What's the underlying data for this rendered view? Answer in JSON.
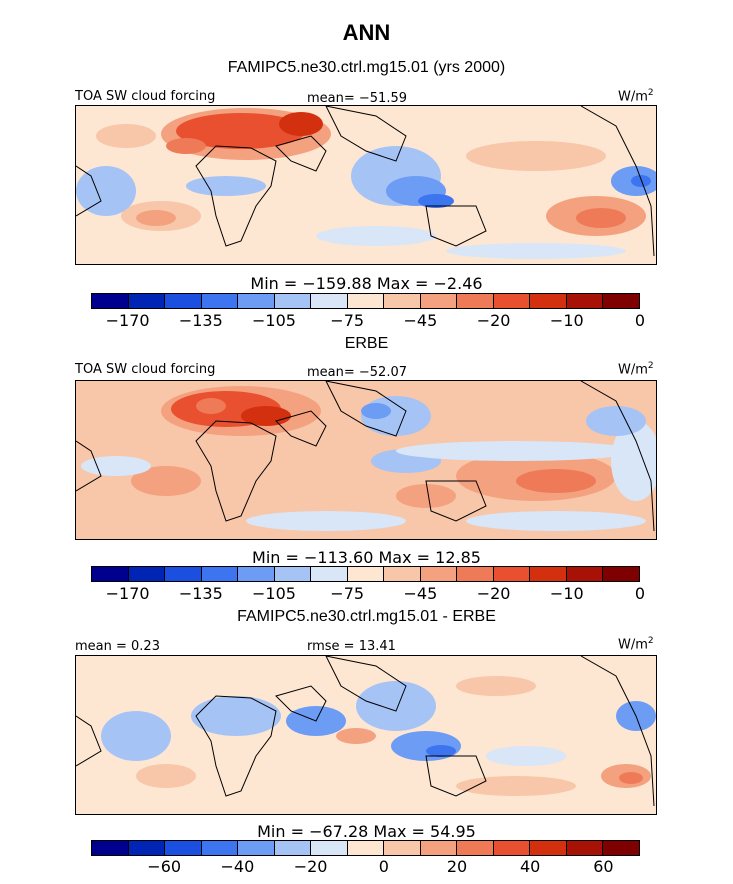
{
  "figure_title": "ANN",
  "panels": [
    {
      "title": "FAMIPC5.ne30.ctrl.mg15.01 (yrs 2000)",
      "left_label": "TOA SW cloud forcing",
      "mean_label": "mean= −51.59",
      "units": "W/m",
      "units_sup": "2",
      "stats_label": "Min = −159.88 Max =  −2.46",
      "colors": [
        "#00008f",
        "#0024b4",
        "#1a4fe0",
        "#3d74f0",
        "#6d9cf5",
        "#a6c3f5",
        "#d8e6f7",
        "#fde6d2",
        "#f8c6a8",
        "#f4a17f",
        "#ef7a58",
        "#e8502f",
        "#d2300e",
        "#a81206",
        "#7f0000"
      ],
      "ticks": [
        "−170",
        "−135",
        "−105",
        "−75",
        "−45",
        "−20",
        "−10",
        "0"
      ]
    },
    {
      "title": "ERBE",
      "left_label": "TOA SW cloud forcing",
      "mean_label": "mean= −52.07",
      "units": "W/m",
      "units_sup": "2",
      "stats_label": "Min = −113.60 Max =  12.85",
      "colors": [
        "#00008f",
        "#0024b4",
        "#1a4fe0",
        "#3d74f0",
        "#6d9cf5",
        "#a6c3f5",
        "#d8e6f7",
        "#fde6d2",
        "#f8c6a8",
        "#f4a17f",
        "#ef7a58",
        "#e8502f",
        "#d2300e",
        "#a81206",
        "#7f0000"
      ],
      "ticks": [
        "−170",
        "−135",
        "−105",
        "−75",
        "−45",
        "−20",
        "−10",
        "0"
      ]
    },
    {
      "title": "FAMIPC5.ne30.ctrl.mg15.01 - ERBE",
      "left_label": "mean =   0.23",
      "mean_label": "rmse =  13.41",
      "units": "W/m",
      "units_sup": "2",
      "stats_label": "Min = −67.28 Max =  54.95",
      "colors": [
        "#00008f",
        "#0024b4",
        "#1a4fe0",
        "#3d74f0",
        "#6d9cf5",
        "#a6c3f5",
        "#d8e6f7",
        "#fde6d2",
        "#f8c6a8",
        "#f4a17f",
        "#ef7a58",
        "#e8502f",
        "#d2300e",
        "#a81206",
        "#7f0000"
      ],
      "ticks": [
        "−60",
        "−40",
        "−20",
        "0",
        "20",
        "40",
        "60"
      ]
    }
  ],
  "chart_data": {
    "type": "heatmap",
    "title": "ANN",
    "subplots": [
      {
        "title": "FAMIPC5.ne30.ctrl.mg15.01 (yrs 2000)",
        "variable": "TOA SW cloud forcing",
        "mean": -51.59,
        "min": -159.88,
        "max": -2.46,
        "units": "W/m2",
        "colorbar_levels": [
          -170,
          -135,
          -105,
          -75,
          -45,
          -20,
          -10,
          0
        ]
      },
      {
        "title": "ERBE",
        "variable": "TOA SW cloud forcing",
        "mean": -52.07,
        "min": -113.6,
        "max": 12.85,
        "units": "W/m2",
        "colorbar_levels": [
          -170,
          -135,
          -105,
          -75,
          -45,
          -20,
          -10,
          0
        ]
      },
      {
        "title": "FAMIPC5.ne30.ctrl.mg15.01 - ERBE",
        "mean": 0.23,
        "rmse": 13.41,
        "min": -67.28,
        "max": 54.95,
        "units": "W/m2",
        "colorbar_levels": [
          -60,
          -40,
          -20,
          0,
          20,
          40,
          60
        ]
      }
    ]
  }
}
